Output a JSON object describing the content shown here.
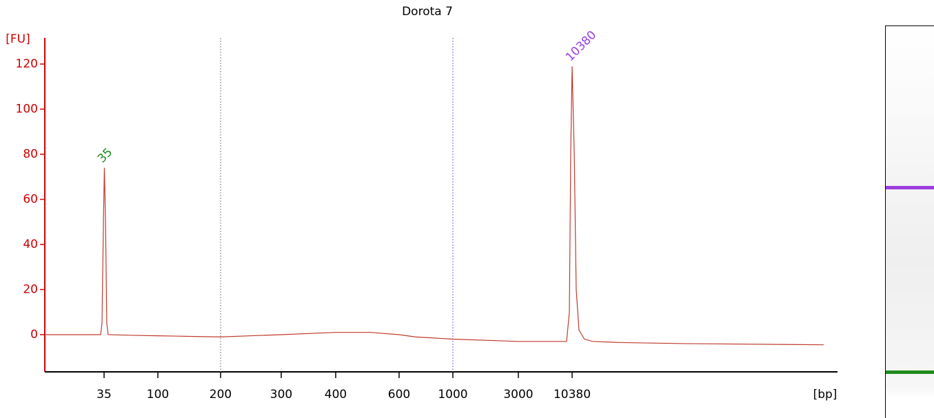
{
  "chart_data": {
    "type": "line",
    "title": "Dorota 7",
    "y_label": "[FU]",
    "x_label": "[bp]",
    "x": [
      12,
      30,
      32.9,
      33.7,
      34.6,
      35.2,
      36,
      36.9,
      37.9,
      60,
      100,
      150,
      200,
      300,
      400,
      500,
      600,
      700,
      1000,
      3000,
      7000,
      9140,
      9740,
      10050,
      10380,
      10500,
      10610,
      10770,
      11090,
      11600,
      13450,
      19450,
      40000
    ],
    "series": [
      {
        "name": "Dorota 7",
        "color": "#c0392b",
        "values": [
          0,
          0,
          0,
          5,
          50,
          74,
          50,
          5,
          0,
          -0.3,
          -0.5,
          -0.8,
          -1,
          0,
          1,
          1,
          0,
          -1,
          -2,
          -3,
          -3,
          -3,
          10,
          80,
          119,
          80,
          20,
          2,
          -2,
          -3,
          -3.5,
          -4,
          -4.5
        ]
      }
    ],
    "xlim": [
      12,
      40000
    ],
    "xticks": [
      35,
      100,
      200,
      300,
      400,
      600,
      1000,
      3000,
      10380
    ],
    "ylim": [
      -16.5,
      131.6
    ],
    "yticks": [
      0,
      20,
      40,
      60,
      80,
      100,
      120
    ],
    "vlines": [
      {
        "x": 200,
        "color": "#808080"
      },
      {
        "x": 1000,
        "color": "#6a6ad8"
      }
    ],
    "annotations": [
      {
        "text": "35",
        "x": 35,
        "y": 74,
        "color": "#1e8a1e"
      },
      {
        "text": "10380",
        "x": 10380,
        "y": 119,
        "color": "#9b3de0"
      }
    ]
  }
}
